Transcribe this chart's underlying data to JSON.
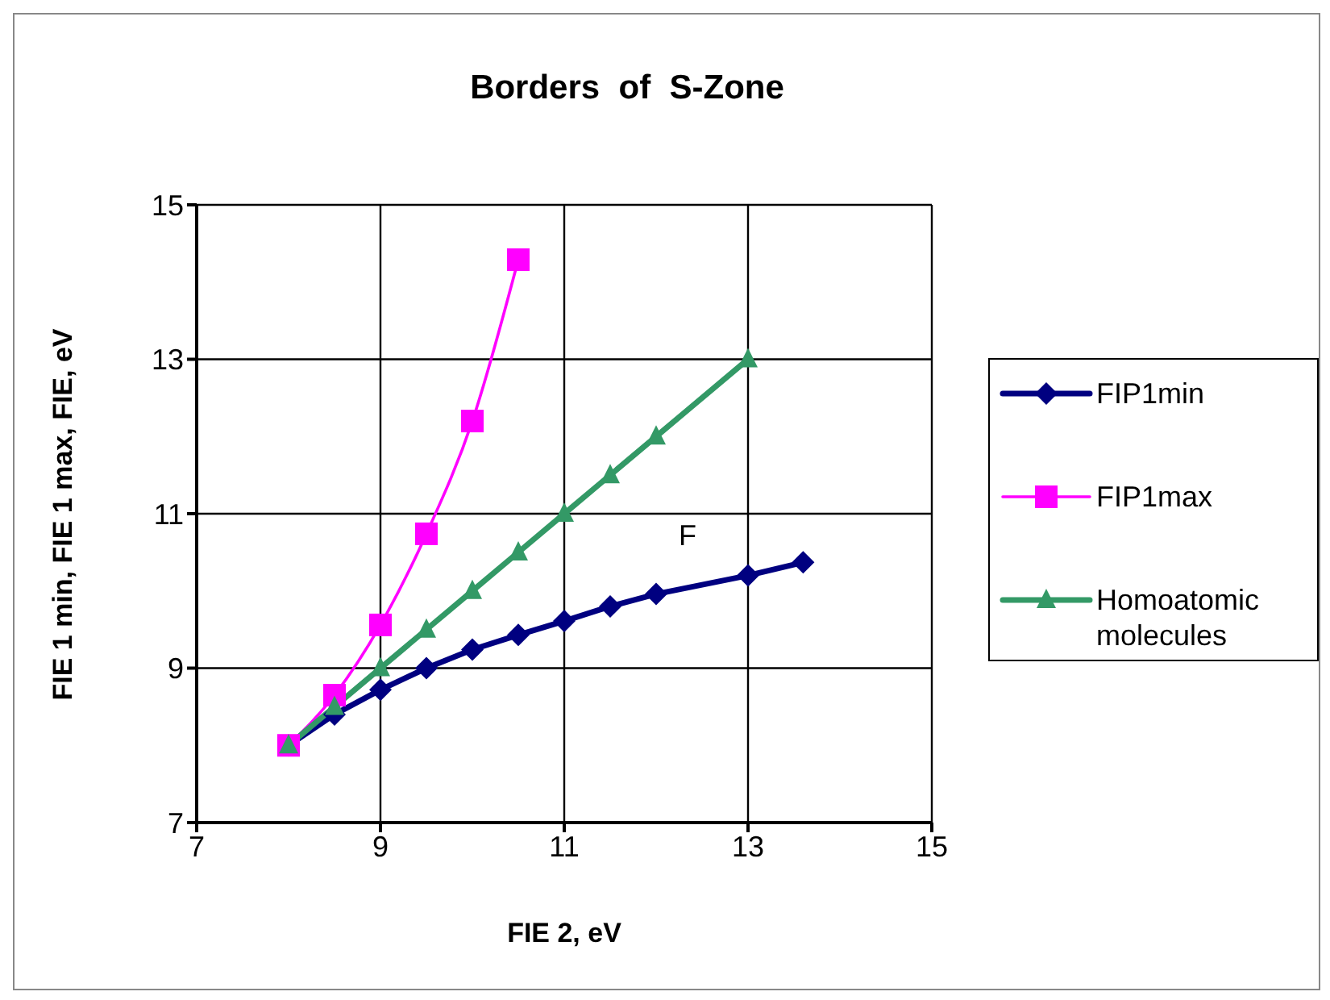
{
  "chart_data": {
    "type": "line",
    "title": "Borders  of  S-Zone",
    "xlabel": "FIE 2, eV",
    "ylabel": "FIE 1 min, FIE 1 max, FIE, eV",
    "xlim": [
      7,
      15
    ],
    "ylim": [
      7,
      15
    ],
    "xticks": [
      7,
      9,
      11,
      13,
      15
    ],
    "yticks": [
      7,
      9,
      11,
      13,
      15
    ],
    "grid": true,
    "legend": "right",
    "annotations": [
      "F"
    ],
    "series": [
      {
        "name": "FIP1min",
        "color": "#000080",
        "marker": "diamond",
        "x": [
          8,
          8.5,
          9,
          9.5,
          10,
          10.5,
          11,
          11.5,
          12,
          13,
          13.6
        ],
        "values": [
          8,
          8.4,
          8.72,
          9.0,
          9.24,
          9.43,
          9.61,
          9.8,
          9.96,
          10.2,
          10.37
        ]
      },
      {
        "name": "FIP1max",
        "color": "#ff00ff",
        "marker": "square",
        "x": [
          8,
          8.5,
          9,
          9.5,
          10,
          10.5
        ],
        "values": [
          8,
          8.65,
          9.56,
          10.74,
          12.2,
          14.29
        ]
      },
      {
        "name": "Homoatomic molecules",
        "color": "#339966",
        "marker": "triangle",
        "x": [
          8,
          8.5,
          9,
          9.5,
          10,
          10.5,
          11,
          11.5,
          12,
          13
        ],
        "values": [
          8,
          8.5,
          9,
          9.5,
          10,
          10.5,
          11,
          11.5,
          12,
          13
        ]
      }
    ]
  }
}
